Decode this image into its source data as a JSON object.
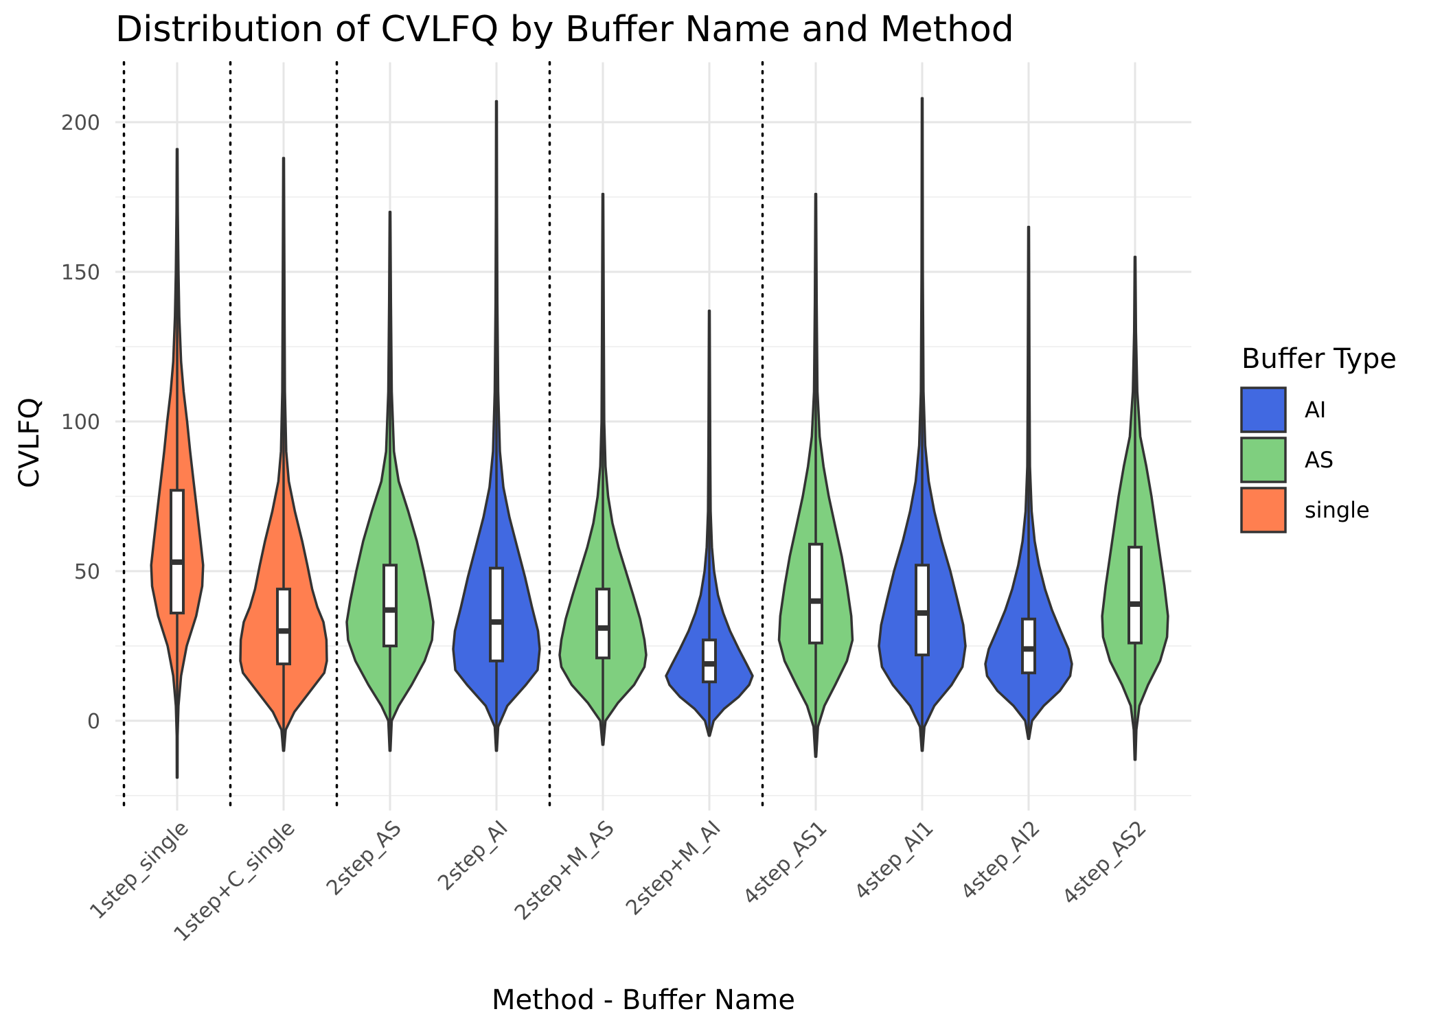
{
  "chart_data": {
    "type": "violin",
    "title": "Distribution of CVLFQ by Buffer Name and Method",
    "xlabel": "Method - Buffer Name",
    "ylabel": "CVLFQ",
    "ylim": [
      -30,
      220
    ],
    "yticks": [
      0,
      50,
      100,
      150,
      200
    ],
    "grid": true,
    "legend": {
      "title": "Buffer Type",
      "position": "right",
      "entries": [
        {
          "label": "AI",
          "color": "#4169E1"
        },
        {
          "label": "AS",
          "color": "#7FCF7F"
        },
        {
          "label": "single",
          "color": "#FF7F50"
        }
      ]
    },
    "method_separators_after_index": [
      -1,
      0,
      1,
      3,
      5
    ],
    "categories": [
      {
        "name": "1step_single",
        "type": "single",
        "min": -19,
        "max": 191,
        "q1": 36,
        "median": 53,
        "q3": 77,
        "profile": [
          [
            -19,
            0.008
          ],
          [
            -5,
            0.01
          ],
          [
            5,
            0.03
          ],
          [
            15,
            0.09
          ],
          [
            25,
            0.22
          ],
          [
            35,
            0.44
          ],
          [
            45,
            0.58
          ],
          [
            52,
            0.6
          ],
          [
            60,
            0.54
          ],
          [
            70,
            0.46
          ],
          [
            80,
            0.38
          ],
          [
            90,
            0.3
          ],
          [
            100,
            0.23
          ],
          [
            110,
            0.15
          ],
          [
            120,
            0.09
          ],
          [
            135,
            0.05
          ],
          [
            150,
            0.03
          ],
          [
            170,
            0.015
          ],
          [
            191,
            0.008
          ]
        ]
      },
      {
        "name": "1step+C_single",
        "type": "single",
        "min": -10,
        "max": 188,
        "q1": 19,
        "median": 30,
        "q3": 44,
        "profile": [
          [
            -10,
            0.01
          ],
          [
            -3,
            0.05
          ],
          [
            3,
            0.25
          ],
          [
            10,
            0.62
          ],
          [
            16,
            0.94
          ],
          [
            20,
            1.0
          ],
          [
            27,
            0.99
          ],
          [
            33,
            0.92
          ],
          [
            38,
            0.78
          ],
          [
            44,
            0.66
          ],
          [
            52,
            0.55
          ],
          [
            60,
            0.43
          ],
          [
            70,
            0.26
          ],
          [
            80,
            0.12
          ],
          [
            90,
            0.06
          ],
          [
            110,
            0.03
          ],
          [
            140,
            0.02
          ],
          [
            188,
            0.008
          ]
        ]
      },
      {
        "name": "2step_AS",
        "type": "AS",
        "min": -10,
        "max": 170,
        "q1": 25,
        "median": 37,
        "q3": 52,
        "profile": [
          [
            -10,
            0.01
          ],
          [
            0,
            0.04
          ],
          [
            5,
            0.2
          ],
          [
            12,
            0.5
          ],
          [
            20,
            0.8
          ],
          [
            27,
            0.97
          ],
          [
            33,
            1.0
          ],
          [
            40,
            0.92
          ],
          [
            50,
            0.78
          ],
          [
            60,
            0.62
          ],
          [
            70,
            0.42
          ],
          [
            80,
            0.2
          ],
          [
            90,
            0.09
          ],
          [
            110,
            0.04
          ],
          [
            140,
            0.02
          ],
          [
            170,
            0.008
          ]
        ]
      },
      {
        "name": "2step_AI",
        "type": "AI",
        "min": -10,
        "max": 207,
        "q1": 20,
        "median": 33,
        "q3": 51,
        "profile": [
          [
            -10,
            0.01
          ],
          [
            -2,
            0.04
          ],
          [
            5,
            0.25
          ],
          [
            12,
            0.68
          ],
          [
            17,
            0.95
          ],
          [
            24,
            1.0
          ],
          [
            30,
            0.96
          ],
          [
            38,
            0.82
          ],
          [
            48,
            0.66
          ],
          [
            58,
            0.48
          ],
          [
            68,
            0.3
          ],
          [
            78,
            0.16
          ],
          [
            90,
            0.08
          ],
          [
            110,
            0.04
          ],
          [
            140,
            0.02
          ],
          [
            170,
            0.012
          ],
          [
            207,
            0.008
          ]
        ]
      },
      {
        "name": "2step+M_AS",
        "type": "AS",
        "min": -8,
        "max": 176,
        "q1": 21,
        "median": 31,
        "q3": 44,
        "profile": [
          [
            -8,
            0.01
          ],
          [
            0,
            0.06
          ],
          [
            6,
            0.35
          ],
          [
            12,
            0.72
          ],
          [
            18,
            0.96
          ],
          [
            22,
            1.0
          ],
          [
            27,
            0.96
          ],
          [
            34,
            0.86
          ],
          [
            42,
            0.7
          ],
          [
            50,
            0.53
          ],
          [
            58,
            0.36
          ],
          [
            66,
            0.22
          ],
          [
            75,
            0.12
          ],
          [
            85,
            0.06
          ],
          [
            100,
            0.03
          ],
          [
            130,
            0.02
          ],
          [
            176,
            0.008
          ]
        ]
      },
      {
        "name": "2step+M_AI",
        "type": "AI",
        "min": -5,
        "max": 137,
        "q1": 13,
        "median": 19,
        "q3": 27,
        "profile": [
          [
            -5,
            0.01
          ],
          [
            0,
            0.1
          ],
          [
            4,
            0.34
          ],
          [
            8,
            0.68
          ],
          [
            12,
            0.92
          ],
          [
            15,
            1.0
          ],
          [
            19,
            0.86
          ],
          [
            24,
            0.68
          ],
          [
            30,
            0.48
          ],
          [
            36,
            0.32
          ],
          [
            42,
            0.2
          ],
          [
            50,
            0.11
          ],
          [
            58,
            0.06
          ],
          [
            70,
            0.03
          ],
          [
            90,
            0.02
          ],
          [
            137,
            0.008
          ]
        ]
      },
      {
        "name": "4step_AS1",
        "type": "AS",
        "min": -12,
        "max": 176,
        "q1": 26,
        "median": 40,
        "q3": 59,
        "profile": [
          [
            -12,
            0.01
          ],
          [
            -2,
            0.05
          ],
          [
            5,
            0.2
          ],
          [
            12,
            0.45
          ],
          [
            20,
            0.72
          ],
          [
            27,
            0.85
          ],
          [
            35,
            0.82
          ],
          [
            45,
            0.72
          ],
          [
            55,
            0.6
          ],
          [
            65,
            0.45
          ],
          [
            75,
            0.3
          ],
          [
            85,
            0.18
          ],
          [
            95,
            0.09
          ],
          [
            110,
            0.04
          ],
          [
            140,
            0.02
          ],
          [
            176,
            0.008
          ]
        ]
      },
      {
        "name": "4step_AI1",
        "type": "AI",
        "min": -10,
        "max": 208,
        "q1": 22,
        "median": 36,
        "q3": 52,
        "profile": [
          [
            -10,
            0.01
          ],
          [
            -2,
            0.05
          ],
          [
            5,
            0.28
          ],
          [
            12,
            0.68
          ],
          [
            18,
            0.93
          ],
          [
            25,
            1.0
          ],
          [
            32,
            0.95
          ],
          [
            40,
            0.82
          ],
          [
            50,
            0.65
          ],
          [
            60,
            0.45
          ],
          [
            70,
            0.28
          ],
          [
            80,
            0.15
          ],
          [
            92,
            0.07
          ],
          [
            110,
            0.03
          ],
          [
            150,
            0.015
          ],
          [
            208,
            0.008
          ]
        ]
      },
      {
        "name": "4step_AI2",
        "type": "AI",
        "min": -6,
        "max": 165,
        "q1": 16,
        "median": 24,
        "q3": 34,
        "profile": [
          [
            -6,
            0.01
          ],
          [
            0,
            0.08
          ],
          [
            5,
            0.35
          ],
          [
            10,
            0.72
          ],
          [
            15,
            0.96
          ],
          [
            19,
            1.0
          ],
          [
            24,
            0.92
          ],
          [
            30,
            0.74
          ],
          [
            37,
            0.54
          ],
          [
            44,
            0.38
          ],
          [
            52,
            0.24
          ],
          [
            60,
            0.14
          ],
          [
            70,
            0.07
          ],
          [
            85,
            0.03
          ],
          [
            110,
            0.02
          ],
          [
            165,
            0.008
          ]
        ]
      },
      {
        "name": "4step_AS2",
        "type": "AS",
        "min": -13,
        "max": 155,
        "q1": 26,
        "median": 39,
        "q3": 58,
        "profile": [
          [
            -13,
            0.01
          ],
          [
            -3,
            0.03
          ],
          [
            5,
            0.1
          ],
          [
            12,
            0.3
          ],
          [
            20,
            0.58
          ],
          [
            28,
            0.74
          ],
          [
            35,
            0.76
          ],
          [
            45,
            0.68
          ],
          [
            55,
            0.58
          ],
          [
            65,
            0.48
          ],
          [
            75,
            0.38
          ],
          [
            85,
            0.26
          ],
          [
            95,
            0.12
          ],
          [
            110,
            0.05
          ],
          [
            130,
            0.02
          ],
          [
            155,
            0.008
          ]
        ]
      }
    ]
  }
}
